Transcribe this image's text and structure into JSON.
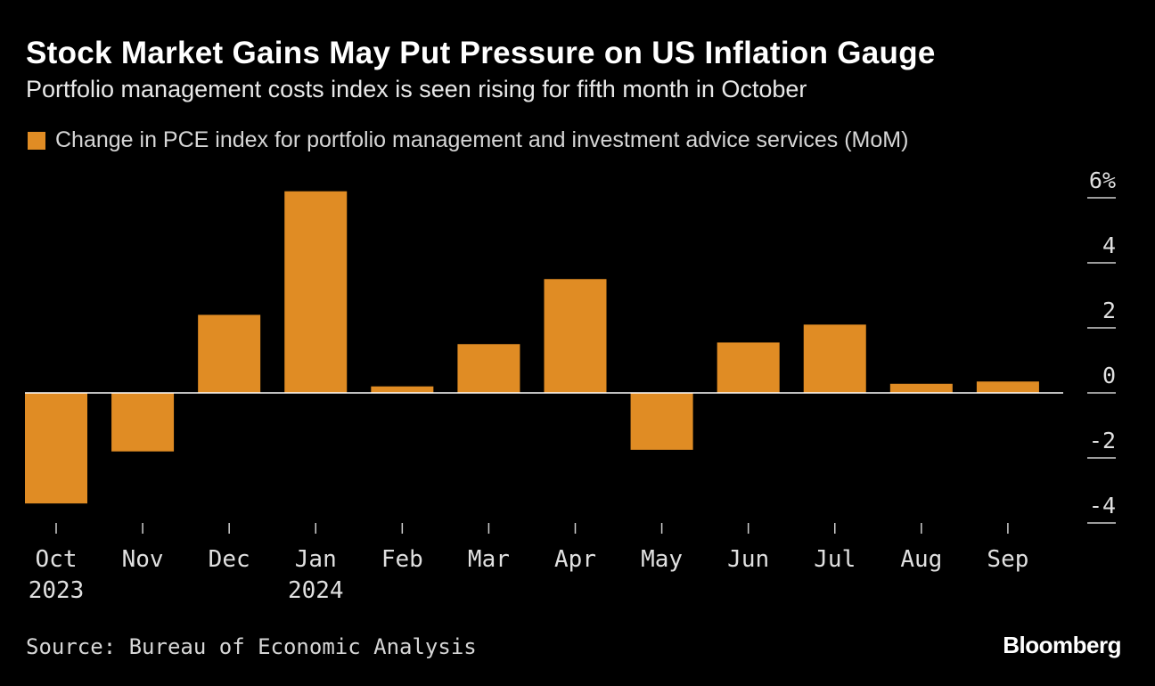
{
  "colors": {
    "background": "#000000",
    "bar": "#e08c24",
    "zero_line": "#ffffff",
    "tick": "#d0d0d0"
  },
  "chart_data": {
    "type": "bar",
    "title": "Stock Market Gains May Put Pressure on US Inflation Gauge",
    "subtitle": "Portfolio management costs index is seen rising for fifth month in October",
    "legend": "Change in PCE index for portfolio management and investment advice services (MoM)",
    "categories": [
      "Oct",
      "Nov",
      "Dec",
      "Jan",
      "Feb",
      "Mar",
      "Apr",
      "May",
      "Jun",
      "Jul",
      "Aug",
      "Sep"
    ],
    "year_labels": [
      "2023",
      "",
      "",
      "2024",
      "",
      "",
      "",
      "",
      "",
      "",
      "",
      ""
    ],
    "values": [
      -3.4,
      -1.8,
      2.4,
      6.2,
      0.2,
      1.5,
      3.5,
      -1.75,
      1.55,
      2.1,
      0.28,
      0.35
    ],
    "yticks": [
      6,
      4,
      2,
      0,
      -2,
      -4
    ],
    "ytick_labels": [
      "6%",
      "4",
      "2",
      "0",
      "-2",
      "-4"
    ],
    "ylim": [
      -4,
      6
    ],
    "ylabel": "",
    "xlabel": ""
  },
  "footer": {
    "source": "Source: Bureau of Economic Analysis",
    "brand": "Bloomberg"
  }
}
